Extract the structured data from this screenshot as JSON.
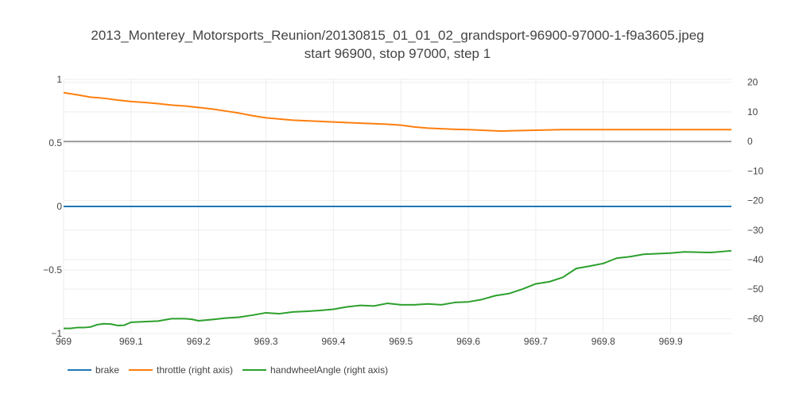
{
  "chart_data": {
    "type": "line",
    "title_line1": "2013_Monterey_Motorsports_Reunion/20130815_01_01_02_grandsport-96900-97000-1-f9a3605.jpeg",
    "title_line2": "start 96900, stop 97000, step 1",
    "x_range": [
      969.0,
      969.99
    ],
    "y_left_range": [
      -1,
      1
    ],
    "y_right_range": [
      -65,
      21
    ],
    "x_ticks": [
      {
        "value": 969.0,
        "label": "969"
      },
      {
        "value": 969.1,
        "label": "969.1"
      },
      {
        "value": 969.2,
        "label": "969.2"
      },
      {
        "value": 969.3,
        "label": "969.3"
      },
      {
        "value": 969.4,
        "label": "969.4"
      },
      {
        "value": 969.5,
        "label": "969.5"
      },
      {
        "value": 969.6,
        "label": "969.6"
      },
      {
        "value": 969.7,
        "label": "969.7"
      },
      {
        "value": 969.8,
        "label": "969.8"
      },
      {
        "value": 969.9,
        "label": "969.9"
      }
    ],
    "y_left_ticks": [
      {
        "value": 1,
        "label": "1"
      },
      {
        "value": 0.5,
        "label": "0.5"
      },
      {
        "value": 0,
        "label": "0"
      },
      {
        "value": -0.5,
        "label": "−0.5"
      },
      {
        "value": -1,
        "label": "−1"
      }
    ],
    "y_right_ticks": [
      {
        "value": 20,
        "label": "20"
      },
      {
        "value": 10,
        "label": "10"
      },
      {
        "value": 0,
        "label": "0"
      },
      {
        "value": -10,
        "label": "−10"
      },
      {
        "value": -20,
        "label": "−20"
      },
      {
        "value": -30,
        "label": "−30"
      },
      {
        "value": -40,
        "label": "−40"
      },
      {
        "value": -50,
        "label": "−50"
      },
      {
        "value": -60,
        "label": "−60"
      }
    ],
    "grid": true,
    "legend_placement": "bottom-left, horizontal",
    "series": [
      {
        "name": "brake",
        "axis": "left",
        "color": "#1f77b4",
        "x": [
          969.0,
          969.99
        ],
        "y": [
          0,
          0
        ]
      },
      {
        "name": "throttle (right axis)",
        "axis": "right",
        "color": "#ff7f0e",
        "x": [
          969.0,
          969.02,
          969.04,
          969.06,
          969.08,
          969.1,
          969.12,
          969.14,
          969.16,
          969.18,
          969.2,
          969.22,
          969.24,
          969.26,
          969.28,
          969.3,
          969.32,
          969.34,
          969.36,
          969.38,
          969.4,
          969.42,
          969.44,
          969.46,
          969.48,
          969.5,
          969.52,
          969.54,
          969.56,
          969.58,
          969.6,
          969.62,
          969.64,
          969.65,
          969.66,
          969.68,
          969.7,
          969.72,
          969.74,
          969.76,
          969.78,
          969.8,
          969.82,
          969.84,
          969.86,
          969.88,
          969.9,
          969.92,
          969.94,
          969.96,
          969.99
        ],
        "y": [
          16.5,
          15.8,
          15.0,
          14.6,
          14.0,
          13.5,
          13.2,
          12.8,
          12.3,
          12.0,
          11.5,
          11.0,
          10.3,
          9.6,
          8.7,
          8.0,
          7.6,
          7.2,
          7.0,
          6.8,
          6.6,
          6.4,
          6.2,
          6.0,
          5.8,
          5.5,
          4.9,
          4.5,
          4.3,
          4.1,
          4.0,
          3.8,
          3.6,
          3.5,
          3.6,
          3.7,
          3.8,
          3.9,
          4.0,
          4.0,
          4.0,
          4.0,
          4.0,
          4.0,
          4.0,
          4.0,
          4.0,
          4.0,
          4.0,
          4.0,
          4.0
        ]
      },
      {
        "name": "handwheelAngle (right axis)",
        "axis": "right",
        "color": "#2ca02c",
        "x": [
          969.0,
          969.01,
          969.02,
          969.03,
          969.04,
          969.05,
          969.06,
          969.07,
          969.08,
          969.09,
          969.1,
          969.12,
          969.14,
          969.16,
          969.18,
          969.19,
          969.2,
          969.22,
          969.24,
          969.26,
          969.28,
          969.3,
          969.32,
          969.34,
          969.36,
          969.38,
          969.4,
          969.42,
          969.44,
          969.46,
          969.48,
          969.5,
          969.52,
          969.54,
          969.56,
          969.58,
          969.6,
          969.62,
          969.64,
          969.66,
          969.68,
          969.7,
          969.72,
          969.74,
          969.76,
          969.78,
          969.8,
          969.82,
          969.84,
          969.86,
          969.88,
          969.9,
          969.92,
          969.94,
          969.96,
          969.99
        ],
        "y": [
          -63.3,
          -63.3,
          -63.0,
          -63.0,
          -62.8,
          -62.0,
          -61.7,
          -61.8,
          -62.3,
          -62.2,
          -61.2,
          -61.0,
          -60.8,
          -60.0,
          -60.0,
          -60.2,
          -60.7,
          -60.3,
          -59.8,
          -59.5,
          -58.8,
          -58.0,
          -58.3,
          -57.7,
          -57.5,
          -57.2,
          -56.8,
          -56.0,
          -55.5,
          -55.7,
          -54.8,
          -55.3,
          -55.3,
          -55.0,
          -55.3,
          -54.5,
          -54.3,
          -53.5,
          -52.2,
          -51.5,
          -50.0,
          -48.2,
          -47.5,
          -46.0,
          -43.0,
          -42.2,
          -41.3,
          -39.5,
          -39.0,
          -38.2,
          -38.0,
          -37.8,
          -37.4,
          -37.5,
          -37.6,
          -37.0
        ]
      }
    ]
  }
}
